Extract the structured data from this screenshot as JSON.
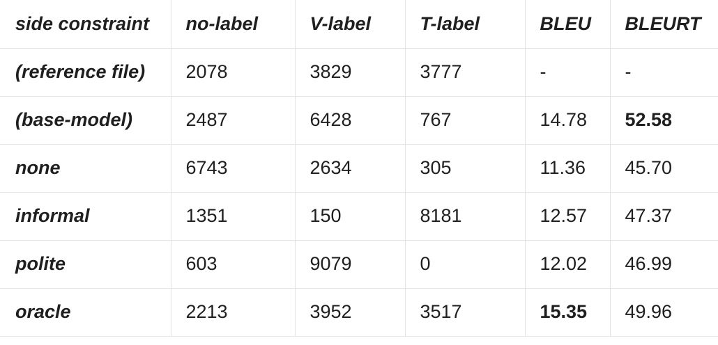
{
  "table": {
    "headers": [
      "side constraint",
      "no-label",
      "V-label",
      "T-label",
      "BLEU",
      "BLEURT"
    ],
    "rows": [
      {
        "label": "(reference file)",
        "no_label": "2078",
        "v_label": "3829",
        "t_label": "3777",
        "bleu": "-",
        "bleurt": "-"
      },
      {
        "label": "(base-model)",
        "no_label": "2487",
        "v_label": "6428",
        "t_label": "767",
        "bleu": "14.78",
        "bleurt": "52.58"
      },
      {
        "label": "none",
        "no_label": "6743",
        "v_label": "2634",
        "t_label": "305",
        "bleu": "11.36",
        "bleurt": "45.70"
      },
      {
        "label": "informal",
        "no_label": "1351",
        "v_label": "150",
        "t_label": "8181",
        "bleu": "12.57",
        "bleurt": "47.37"
      },
      {
        "label": "polite",
        "no_label": "603",
        "v_label": "9079",
        "t_label": "0",
        "bleu": "12.02",
        "bleurt": "46.99"
      },
      {
        "label": "oracle",
        "no_label": "2213",
        "v_label": "3952",
        "t_label": "3517",
        "bleu": "15.35",
        "bleurt": "49.96"
      }
    ]
  }
}
